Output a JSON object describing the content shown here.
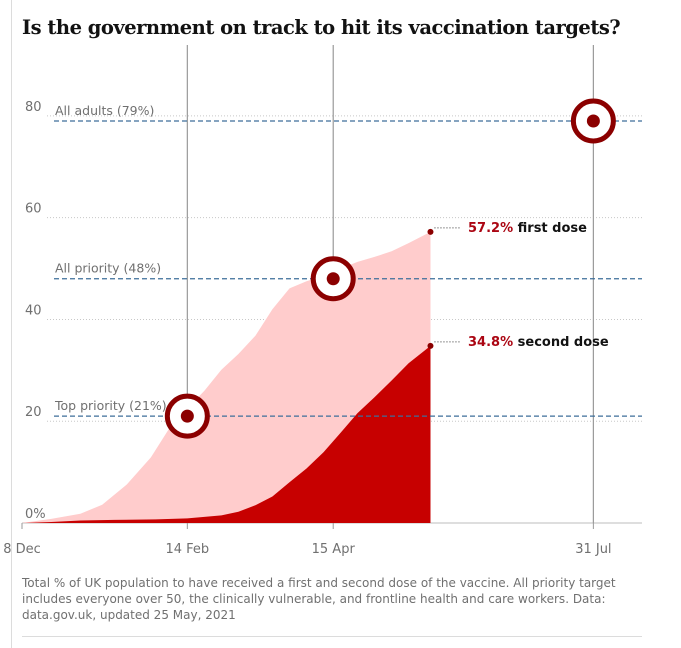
{
  "title": "Is the government on track to hit its vaccination targets?",
  "caption": "Total % of UK population to have received a first and second dose of the vaccine. All priority target includes everyone over 50, the clinically vulnerable, and frontline health and care workers. Data: data.gov.uk, updated 25 May, 2021",
  "colors": {
    "first_dose": "#ffcccc",
    "second_dose": "#c70000",
    "target": "#8b0000",
    "target_line": "#3d6e9a",
    "marker_line": "#999999",
    "grid": "#c8c8c8"
  },
  "chart_data": {
    "type": "area",
    "x_axis": {
      "ticks": [
        "8 Dec",
        "14 Feb",
        "15 Apr",
        "31 Jul"
      ],
      "tick_dates": [
        "2020-12-08",
        "2021-02-14",
        "2021-04-15",
        "2021-07-31"
      ],
      "range": [
        "2020-12-08",
        "2021-08-20"
      ]
    },
    "y_axis": {
      "range": [
        0,
        90
      ],
      "ticks": [
        0,
        20,
        40,
        60,
        80
      ],
      "tick_labels": [
        "0%",
        "20",
        "40",
        "60",
        "80"
      ]
    },
    "grid": true,
    "series": [
      {
        "name": "first dose",
        "end_label_value": "57.2%",
        "end_label_text": "first dose",
        "points": [
          [
            "2020-12-08",
            0
          ],
          [
            "2020-12-20",
            0.8
          ],
          [
            "2021-01-01",
            1.8
          ],
          [
            "2021-01-10",
            3.6
          ],
          [
            "2021-01-20",
            7.5
          ],
          [
            "2021-01-30",
            12.9
          ],
          [
            "2021-02-07",
            18.9
          ],
          [
            "2021-02-14",
            22.5
          ],
          [
            "2021-02-21",
            26.0
          ],
          [
            "2021-02-28",
            30.1
          ],
          [
            "2021-03-07",
            33.2
          ],
          [
            "2021-03-14",
            36.8
          ],
          [
            "2021-03-21",
            42.0
          ],
          [
            "2021-03-28",
            46.1
          ],
          [
            "2021-04-04",
            47.5
          ],
          [
            "2021-04-11",
            48.6
          ],
          [
            "2021-04-18",
            50.0
          ],
          [
            "2021-04-25",
            51.3
          ],
          [
            "2021-05-02",
            52.3
          ],
          [
            "2021-05-09",
            53.4
          ],
          [
            "2021-05-16",
            55.0
          ],
          [
            "2021-05-25",
            57.2
          ]
        ]
      },
      {
        "name": "second dose",
        "end_label_value": "34.8%",
        "end_label_text": "second dose",
        "points": [
          [
            "2020-12-08",
            0
          ],
          [
            "2020-12-20",
            0.2
          ],
          [
            "2021-01-01",
            0.5
          ],
          [
            "2021-01-15",
            0.6
          ],
          [
            "2021-02-01",
            0.7
          ],
          [
            "2021-02-14",
            0.9
          ],
          [
            "2021-02-28",
            1.5
          ],
          [
            "2021-03-07",
            2.2
          ],
          [
            "2021-03-14",
            3.5
          ],
          [
            "2021-03-21",
            5.2
          ],
          [
            "2021-03-28",
            8.0
          ],
          [
            "2021-04-04",
            10.7
          ],
          [
            "2021-04-11",
            13.9
          ],
          [
            "2021-04-18",
            17.7
          ],
          [
            "2021-04-25",
            21.6
          ],
          [
            "2021-05-02",
            24.7
          ],
          [
            "2021-05-09",
            28.0
          ],
          [
            "2021-05-16",
            31.4
          ],
          [
            "2021-05-25",
            34.8
          ]
        ]
      }
    ],
    "targets": [
      {
        "label": "Top priority (21%)",
        "value": 21,
        "date": "2021-02-14"
      },
      {
        "label": "All priority (48%)",
        "value": 48,
        "date": "2021-04-15"
      },
      {
        "label": "All adults (79%)",
        "value": 79,
        "date": "2021-07-31"
      }
    ]
  }
}
